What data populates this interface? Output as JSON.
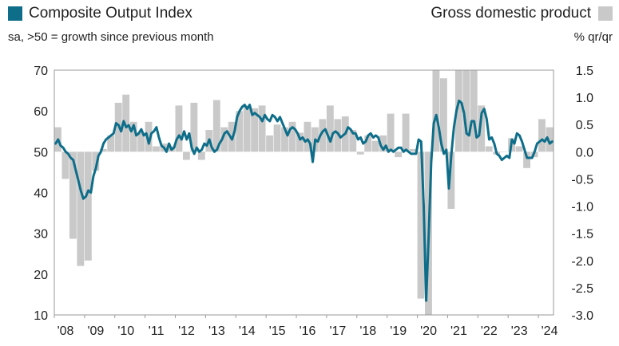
{
  "legend": {
    "left_label": "Composite Output Index",
    "right_label": "Gross domestic product",
    "left_color": "#0E6E8A",
    "right_color": "#C9C9C9"
  },
  "subtitle": "sa, >50 = growth since previous month",
  "right_unit": "% qr/qr",
  "chart_data": {
    "type": "bar+line",
    "legend_placement": "top",
    "grid": false,
    "left_axis": {
      "ylim": [
        10,
        70
      ],
      "ticks": [
        "70",
        "60",
        "50",
        "40",
        "30",
        "20",
        "10"
      ]
    },
    "right_axis": {
      "ylim": [
        -3.0,
        1.5
      ],
      "ticks": [
        "1.5",
        "1.0",
        "0.5",
        "0.0",
        "-0.5",
        "-1.0",
        "-1.5",
        "-2.0",
        "-2.5",
        "-3.0"
      ]
    },
    "x_ticks": [
      "'08",
      "'09",
      "'10",
      "'11",
      "'12",
      "'13",
      "'14",
      "'15",
      "'16",
      "'17",
      "'18",
      "'19",
      "'20",
      "'21",
      "'22",
      "'23",
      "'24"
    ],
    "x_range": [
      "2008-01",
      "2024-06"
    ],
    "series": [
      {
        "name": "Composite Output Index",
        "kind": "line",
        "axis": "left",
        "color": "#0E6E8A",
        "points": [
          [
            "2008-01",
            52
          ],
          [
            "2008-02",
            53
          ],
          [
            "2008-03",
            51.5
          ],
          [
            "2008-04",
            51
          ],
          [
            "2008-05",
            50
          ],
          [
            "2008-06",
            49.5
          ],
          [
            "2008-07",
            48.5
          ],
          [
            "2008-08",
            48
          ],
          [
            "2008-09",
            45.5
          ],
          [
            "2008-10",
            43
          ],
          [
            "2008-11",
            40.5
          ],
          [
            "2008-12",
            38.5
          ],
          [
            "2009-01",
            39
          ],
          [
            "2009-02",
            40.5
          ],
          [
            "2009-03",
            40
          ],
          [
            "2009-04",
            44
          ],
          [
            "2009-05",
            46
          ],
          [
            "2009-06",
            49
          ],
          [
            "2009-07",
            50
          ],
          [
            "2009-08",
            52
          ],
          [
            "2009-09",
            53
          ],
          [
            "2009-10",
            53.5
          ],
          [
            "2009-11",
            54
          ],
          [
            "2009-12",
            54.5
          ],
          [
            "2010-01",
            57
          ],
          [
            "2010-02",
            56.5
          ],
          [
            "2010-03",
            55
          ],
          [
            "2010-04",
            57.5
          ],
          [
            "2010-05",
            56
          ],
          [
            "2010-06",
            56.5
          ],
          [
            "2010-07",
            55
          ],
          [
            "2010-08",
            56.5
          ],
          [
            "2010-09",
            54
          ],
          [
            "2010-10",
            54.5
          ],
          [
            "2010-11",
            55.5
          ],
          [
            "2010-12",
            54
          ],
          [
            "2011-01",
            54.5
          ],
          [
            "2011-02",
            52
          ],
          [
            "2011-03",
            54.5
          ],
          [
            "2011-04",
            55
          ],
          [
            "2011-05",
            56
          ],
          [
            "2011-06",
            53.5
          ],
          [
            "2011-07",
            51.5
          ],
          [
            "2011-08",
            51
          ],
          [
            "2011-09",
            50
          ],
          [
            "2011-10",
            52
          ],
          [
            "2011-11",
            50.5
          ],
          [
            "2011-12",
            51
          ],
          [
            "2012-01",
            53
          ],
          [
            "2012-02",
            54
          ],
          [
            "2012-03",
            53
          ],
          [
            "2012-04",
            55
          ],
          [
            "2012-05",
            53
          ],
          [
            "2012-06",
            54.5
          ],
          [
            "2012-07",
            51
          ],
          [
            "2012-08",
            49.5
          ],
          [
            "2012-09",
            51
          ],
          [
            "2012-10",
            50
          ],
          [
            "2012-11",
            50.5
          ],
          [
            "2012-12",
            52
          ],
          [
            "2013-01",
            51.5
          ],
          [
            "2013-02",
            53
          ],
          [
            "2013-03",
            51
          ],
          [
            "2013-04",
            50
          ],
          [
            "2013-05",
            50.5
          ],
          [
            "2013-06",
            52
          ],
          [
            "2013-07",
            53
          ],
          [
            "2013-08",
            54.5
          ],
          [
            "2013-09",
            55
          ],
          [
            "2013-10",
            54
          ],
          [
            "2013-11",
            53
          ],
          [
            "2013-12",
            55
          ],
          [
            "2014-01",
            58.5
          ],
          [
            "2014-02",
            60
          ],
          [
            "2014-03",
            61
          ],
          [
            "2014-04",
            61.5
          ],
          [
            "2014-05",
            60.5
          ],
          [
            "2014-06",
            61.5
          ],
          [
            "2014-07",
            59
          ],
          [
            "2014-08",
            59.5
          ],
          [
            "2014-09",
            59
          ],
          [
            "2014-10",
            58.5
          ],
          [
            "2014-11",
            57.5
          ],
          [
            "2014-12",
            59
          ],
          [
            "2015-01",
            58
          ],
          [
            "2015-02",
            57.5
          ],
          [
            "2015-03",
            59
          ],
          [
            "2015-04",
            58.5
          ],
          [
            "2015-05",
            57.5
          ],
          [
            "2015-06",
            58.5
          ],
          [
            "2015-07",
            57
          ],
          [
            "2015-08",
            55.5
          ],
          [
            "2015-09",
            54
          ],
          [
            "2015-10",
            55.5
          ],
          [
            "2015-11",
            56
          ],
          [
            "2015-12",
            55.5
          ],
          [
            "2016-01",
            54.5
          ],
          [
            "2016-02",
            53
          ],
          [
            "2016-03",
            53.5
          ],
          [
            "2016-04",
            52.5
          ],
          [
            "2016-05",
            53
          ],
          [
            "2016-06",
            52
          ],
          [
            "2016-07",
            47.5
          ],
          [
            "2016-08",
            53
          ],
          [
            "2016-09",
            52.5
          ],
          [
            "2016-10",
            54
          ],
          [
            "2016-11",
            55
          ],
          [
            "2016-12",
            55.5
          ],
          [
            "2017-01",
            54
          ],
          [
            "2017-02",
            52.5
          ],
          [
            "2017-03",
            54.5
          ],
          [
            "2017-04",
            55
          ],
          [
            "2017-05",
            54.5
          ],
          [
            "2017-06",
            53.5
          ],
          [
            "2017-07",
            54
          ],
          [
            "2017-08",
            54.5
          ],
          [
            "2017-09",
            56
          ],
          [
            "2017-10",
            55.5
          ],
          [
            "2017-11",
            54.5
          ],
          [
            "2017-12",
            54.5
          ],
          [
            "2018-01",
            53
          ],
          [
            "2018-02",
            53.5
          ],
          [
            "2018-03",
            52
          ],
          [
            "2018-04",
            52.5
          ],
          [
            "2018-05",
            54
          ],
          [
            "2018-06",
            54.5
          ],
          [
            "2018-07",
            53.5
          ],
          [
            "2018-08",
            54
          ],
          [
            "2018-09",
            53.5
          ],
          [
            "2018-10",
            51.5
          ],
          [
            "2018-11",
            50.5
          ],
          [
            "2018-12",
            51.5
          ],
          [
            "2019-01",
            50
          ],
          [
            "2019-02",
            50.5
          ],
          [
            "2019-03",
            50
          ],
          [
            "2019-04",
            50.5
          ],
          [
            "2019-05",
            51
          ],
          [
            "2019-06",
            51
          ],
          [
            "2019-07",
            50
          ],
          [
            "2019-08",
            50.5
          ],
          [
            "2019-09",
            50
          ],
          [
            "2019-10",
            49.5
          ],
          [
            "2019-11",
            49.5
          ],
          [
            "2019-12",
            49.5
          ],
          [
            "2020-01",
            53
          ],
          [
            "2020-02",
            52.5
          ],
          [
            "2020-03",
            37
          ],
          [
            "2020-04",
            13.5
          ],
          [
            "2020-05",
            29.5
          ],
          [
            "2020-06",
            47.5
          ],
          [
            "2020-07",
            57
          ],
          [
            "2020-08",
            59
          ],
          [
            "2020-09",
            56
          ],
          [
            "2020-10",
            52
          ],
          [
            "2020-11",
            49.5
          ],
          [
            "2020-12",
            50.5
          ],
          [
            "2021-01",
            41
          ],
          [
            "2021-02",
            49.5
          ],
          [
            "2021-03",
            56
          ],
          [
            "2021-04",
            60
          ],
          [
            "2021-05",
            62.5
          ],
          [
            "2021-06",
            62
          ],
          [
            "2021-07",
            59.5
          ],
          [
            "2021-08",
            54.5
          ],
          [
            "2021-09",
            54
          ],
          [
            "2021-10",
            57.5
          ],
          [
            "2021-11",
            57.5
          ],
          [
            "2021-12",
            53.5
          ],
          [
            "2022-01",
            54
          ],
          [
            "2022-02",
            59.5
          ],
          [
            "2022-03",
            60.5
          ],
          [
            "2022-04",
            58
          ],
          [
            "2022-05",
            53
          ],
          [
            "2022-06",
            53.5
          ],
          [
            "2022-07",
            52
          ],
          [
            "2022-08",
            49.5
          ],
          [
            "2022-09",
            49
          ],
          [
            "2022-10",
            48
          ],
          [
            "2022-11",
            48.5
          ],
          [
            "2022-12",
            49
          ],
          [
            "2023-01",
            48.5
          ],
          [
            "2023-02",
            53
          ],
          [
            "2023-03",
            52
          ],
          [
            "2023-04",
            54.5
          ],
          [
            "2023-05",
            54
          ],
          [
            "2023-06",
            52.5
          ],
          [
            "2023-07",
            50.5
          ],
          [
            "2023-08",
            48.5
          ],
          [
            "2023-09",
            48.5
          ],
          [
            "2023-10",
            48.5
          ],
          [
            "2023-11",
            50
          ],
          [
            "2023-12",
            52
          ],
          [
            "2024-01",
            52.5
          ],
          [
            "2024-02",
            53
          ],
          [
            "2024-03",
            52.5
          ],
          [
            "2024-04",
            53.5
          ],
          [
            "2024-05",
            52
          ],
          [
            "2024-06",
            52.5
          ]
        ]
      },
      {
        "name": "Gross domestic product",
        "kind": "bar",
        "axis": "right",
        "color": "#C9C9C9",
        "bars": [
          [
            "2008-Q1",
            0.45
          ],
          [
            "2008-Q2",
            -0.5
          ],
          [
            "2008-Q3",
            -1.6
          ],
          [
            "2008-Q4",
            -2.1
          ],
          [
            "2009-Q1",
            -2.0
          ],
          [
            "2009-Q2",
            -0.35
          ],
          [
            "2009-Q3",
            0.05
          ],
          [
            "2009-Q4",
            0.3
          ],
          [
            "2010-Q1",
            0.9
          ],
          [
            "2010-Q2",
            1.05
          ],
          [
            "2010-Q3",
            0.55
          ],
          [
            "2010-Q4",
            0.35
          ],
          [
            "2011-Q1",
            0.55
          ],
          [
            "2011-Q2",
            0.1
          ],
          [
            "2011-Q3",
            0.15
          ],
          [
            "2011-Q4",
            0.1
          ],
          [
            "2012-Q1",
            0.85
          ],
          [
            "2012-Q2",
            -0.15
          ],
          [
            "2012-Q3",
            0.9
          ],
          [
            "2012-Q4",
            -0.15
          ],
          [
            "2013-Q1",
            0.4
          ],
          [
            "2013-Q2",
            0.95
          ],
          [
            "2013-Q3",
            0.45
          ],
          [
            "2013-Q4",
            0.55
          ],
          [
            "2014-Q1",
            0.75
          ],
          [
            "2014-Q2",
            0.85
          ],
          [
            "2014-Q3",
            0.8
          ],
          [
            "2014-Q4",
            0.85
          ],
          [
            "2015-Q1",
            0.3
          ],
          [
            "2015-Q2",
            0.5
          ],
          [
            "2015-Q3",
            0.45
          ],
          [
            "2015-Q4",
            0.55
          ],
          [
            "2016-Q1",
            0.35
          ],
          [
            "2016-Q2",
            0.55
          ],
          [
            "2016-Q3",
            0.45
          ],
          [
            "2016-Q4",
            0.6
          ],
          [
            "2017-Q1",
            0.85
          ],
          [
            "2017-Q2",
            0.6
          ],
          [
            "2017-Q3",
            0.65
          ],
          [
            "2017-Q4",
            0.4
          ],
          [
            "2018-Q1",
            -0.05
          ],
          [
            "2018-Q2",
            0.3
          ],
          [
            "2018-Q3",
            0.2
          ],
          [
            "2018-Q4",
            0.3
          ],
          [
            "2019-Q1",
            0.7
          ],
          [
            "2019-Q2",
            -0.1
          ],
          [
            "2019-Q3",
            0.7
          ],
          [
            "2019-Q4",
            0.05
          ],
          [
            "2020-Q1",
            -2.7
          ],
          [
            "2020-Q2",
            -3.0
          ],
          [
            "2020-Q3",
            1.5
          ],
          [
            "2020-Q4",
            1.35
          ],
          [
            "2021-Q1",
            -1.05
          ],
          [
            "2021-Q2",
            1.5
          ],
          [
            "2021-Q3",
            1.5
          ],
          [
            "2021-Q4",
            1.5
          ],
          [
            "2022-Q1",
            0.85
          ],
          [
            "2022-Q2",
            0.1
          ],
          [
            "2022-Q3",
            -0.05
          ],
          [
            "2022-Q4",
            0.0
          ],
          [
            "2023-Q1",
            0.25
          ],
          [
            "2023-Q2",
            0.1
          ],
          [
            "2023-Q3",
            -0.3
          ],
          [
            "2023-Q4",
            -0.1
          ],
          [
            "2024-Q1",
            0.6
          ],
          [
            "2024-Q2",
            0.45
          ]
        ]
      }
    ]
  }
}
